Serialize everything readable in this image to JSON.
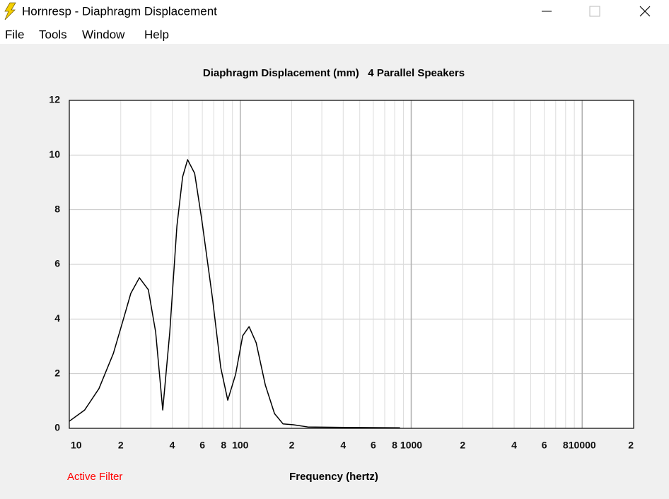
{
  "window": {
    "title": "Hornresp - Diaphragm Displacement"
  },
  "menu": [
    "File",
    "Tools",
    "Window",
    "Help"
  ],
  "chart_data": {
    "type": "line",
    "title": "Diaphragm Displacement (mm)   4 Parallel Speakers",
    "x_label": "Frequency (hertz)",
    "annotation": "Active Filter",
    "log_x": true,
    "grid": true,
    "color": "#000000",
    "xlim": [
      10,
      20000
    ],
    "ylim": [
      0,
      12
    ],
    "yticks": [
      0,
      2,
      4,
      6,
      8,
      10,
      12
    ],
    "xticks": [
      10,
      {
        "value": 20,
        "label": "2"
      },
      {
        "value": 40,
        "label": "4"
      },
      {
        "value": 60,
        "label": "6"
      },
      {
        "value": 80,
        "label": "8"
      },
      100,
      {
        "value": 200,
        "label": "2"
      },
      {
        "value": 400,
        "label": "4"
      },
      {
        "value": 600,
        "label": "6"
      },
      {
        "value": 800,
        "label": "8"
      },
      1000,
      {
        "value": 2000,
        "label": "2"
      },
      {
        "value": 4000,
        "label": "4"
      },
      {
        "value": 6000,
        "label": "6"
      },
      {
        "value": 8000,
        "label": "8"
      },
      10000,
      {
        "value": 20000,
        "label": "2"
      }
    ],
    "x_minor_gridlines": [
      30,
      50,
      70,
      90,
      300,
      500,
      700,
      900,
      3000,
      5000,
      7000,
      9000
    ],
    "x": [
      10,
      12.3,
      14.9,
      18.1,
      20.8,
      22.9,
      25.7,
      29,
      32,
      35.2,
      38.7,
      42.6,
      46,
      49.2,
      54.1,
      59.5,
      68.6,
      76.9,
      84.5,
      93.9,
      103.4,
      112.6,
      123.9,
      140.2,
      158.6,
      178,
      205,
      248,
      460,
      860
    ],
    "values": [
      0.26,
      0.67,
      1.45,
      2.74,
      4.03,
      4.94,
      5.51,
      5.07,
      3.52,
      0.67,
      3.52,
      7.4,
      9.2,
      9.83,
      9.33,
      7.65,
      4.81,
      2.22,
      1.03,
      1.97,
      3.39,
      3.72,
      3.13,
      1.58,
      0.54,
      0.16,
      0.13,
      0.05,
      0.03,
      0.02
    ]
  }
}
